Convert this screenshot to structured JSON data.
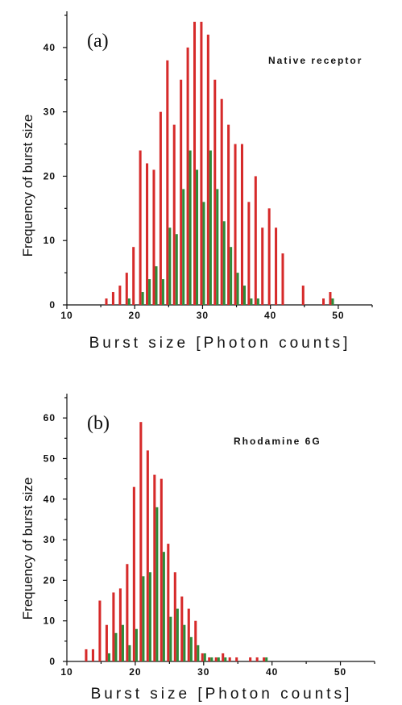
{
  "colors": {
    "series_red": "#d62a2a",
    "series_green": "#2e8b3a"
  },
  "chart_data": [
    {
      "type": "bar",
      "panel_label": "(a)",
      "annotation": "Native receptor",
      "xlabel": "Burst size [Photon counts]",
      "ylabel": "Frequency of burst size",
      "xlim": [
        10,
        55
      ],
      "ylim": [
        0,
        45
      ],
      "xticks": [
        10,
        20,
        30,
        40,
        50
      ],
      "yticks": [
        0,
        10,
        20,
        30,
        40
      ],
      "series": [
        {
          "color": "#d62a2a",
          "x": [
            16,
            17,
            18,
            19,
            20,
            21,
            22,
            23,
            24,
            25,
            26,
            27,
            28,
            29,
            30,
            31,
            32,
            33,
            34,
            35,
            36,
            37,
            38,
            39,
            40,
            41,
            42,
            45,
            48,
            49
          ],
          "values": [
            1,
            2,
            3,
            5,
            9,
            24,
            22,
            21,
            30,
            38,
            28,
            35,
            40,
            44,
            44,
            42,
            35,
            32,
            28,
            25,
            25,
            16,
            20,
            12,
            15,
            12,
            8,
            3,
            1,
            2
          ]
        },
        {
          "color": "#2e8b3a",
          "x": [
            19,
            21,
            22,
            23,
            24,
            25,
            26,
            27,
            28,
            29,
            30,
            31,
            32,
            33,
            34,
            35,
            36,
            37,
            38,
            49
          ],
          "values": [
            1,
            2,
            4,
            6,
            4,
            12,
            11,
            18,
            24,
            21,
            16,
            24,
            18,
            13,
            9,
            5,
            3,
            1,
            1,
            1
          ]
        }
      ]
    },
    {
      "type": "bar",
      "panel_label": "(b)",
      "annotation": "Rhodamine 6G",
      "xlabel": "Burst size [Photon counts]",
      "ylabel": "Frequency of burst size",
      "xlim": [
        10,
        55
      ],
      "ylim": [
        0,
        65
      ],
      "xticks": [
        10,
        20,
        30,
        40,
        50
      ],
      "yticks": [
        0,
        10,
        20,
        30,
        40,
        50,
        60
      ],
      "series": [
        {
          "color": "#d62a2a",
          "x": [
            13,
            14,
            15,
            16,
            17,
            18,
            19,
            20,
            21,
            22,
            23,
            24,
            25,
            26,
            27,
            28,
            29,
            30,
            31,
            32,
            33,
            34,
            35,
            37,
            38,
            39
          ],
          "values": [
            3,
            3,
            15,
            9,
            17,
            18,
            24,
            43,
            59,
            52,
            46,
            45,
            29,
            22,
            16,
            13,
            10,
            2,
            1,
            1,
            2,
            1,
            1,
            1,
            1,
            1
          ]
        },
        {
          "color": "#2e8b3a",
          "x": [
            16,
            17,
            18,
            19,
            20,
            21,
            22,
            23,
            24,
            25,
            26,
            27,
            28,
            29,
            30,
            31,
            32,
            33,
            39
          ],
          "values": [
            2,
            7,
            9,
            4,
            8,
            21,
            22,
            38,
            27,
            11,
            13,
            9,
            6,
            4,
            2,
            1,
            1,
            1,
            1
          ]
        }
      ]
    }
  ]
}
